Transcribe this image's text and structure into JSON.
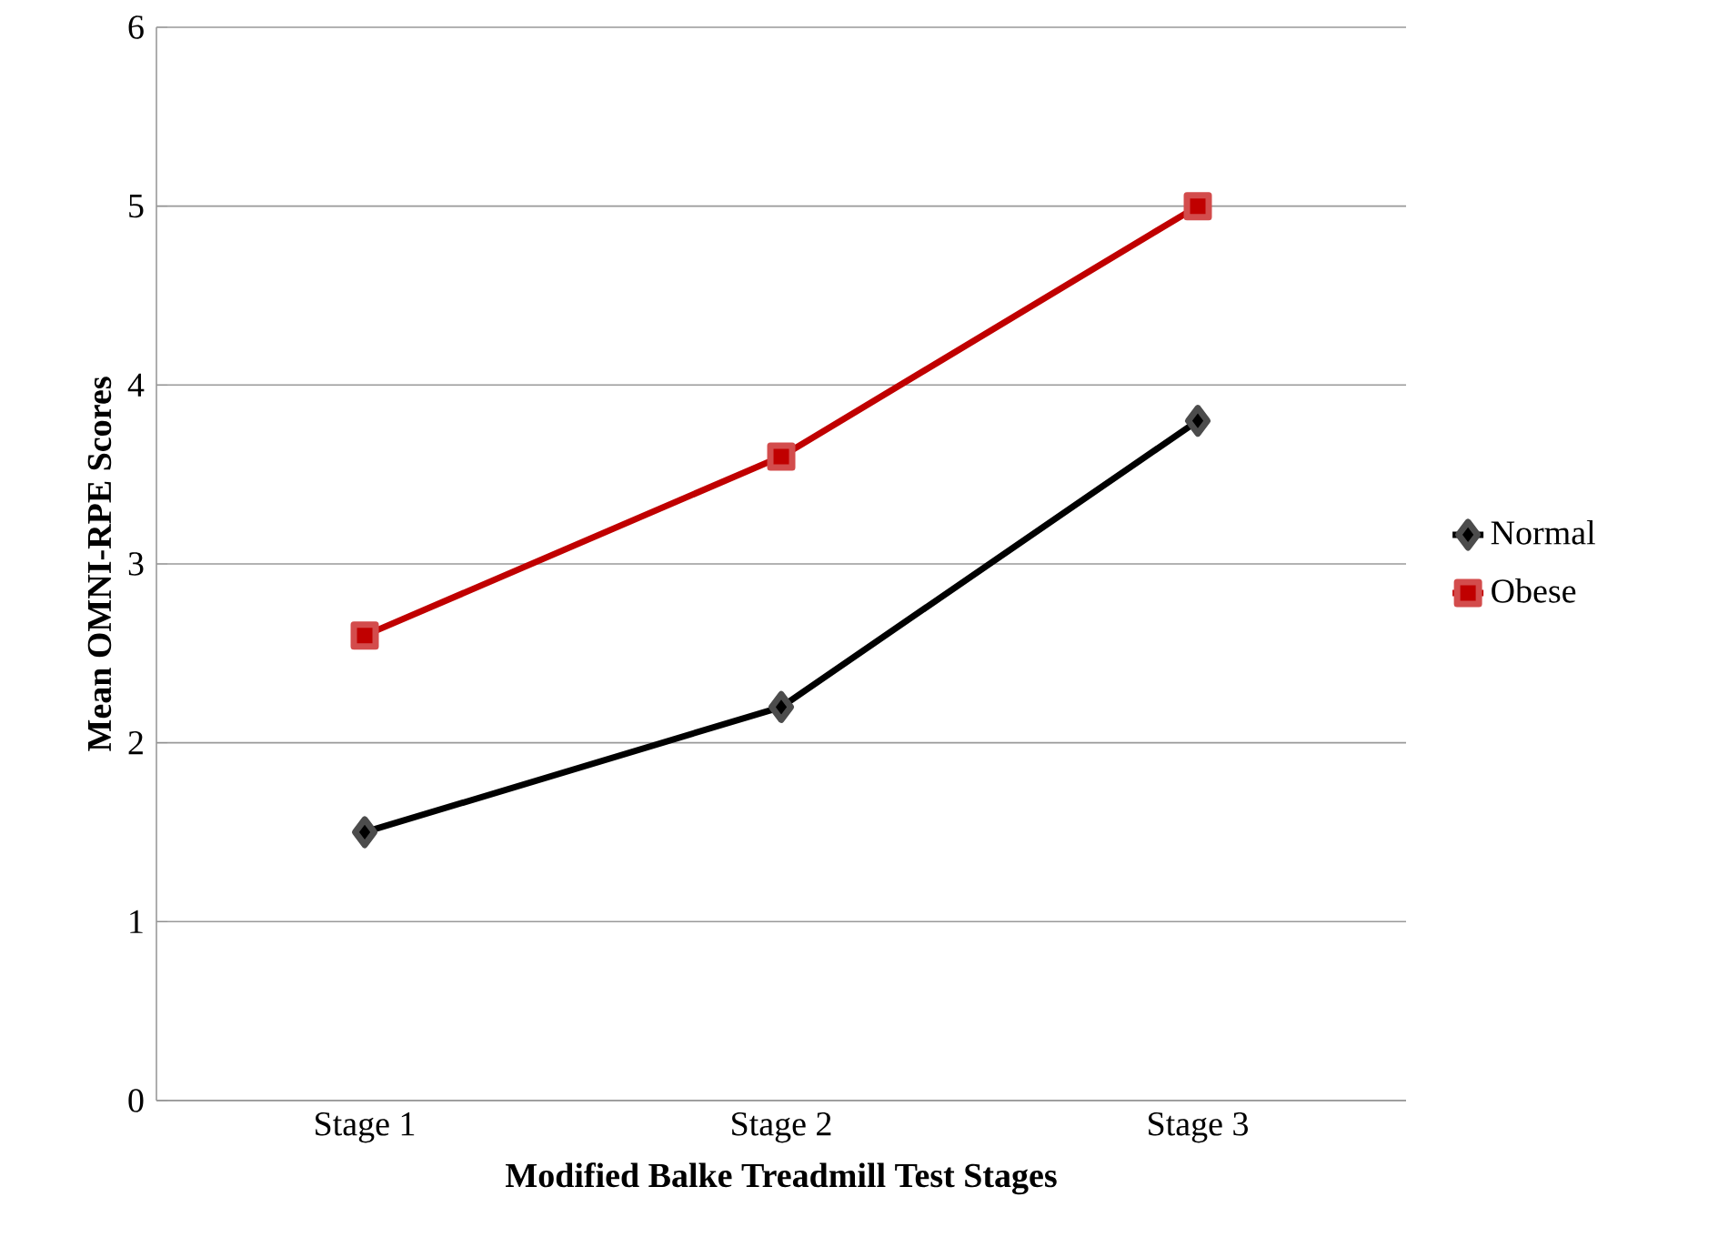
{
  "chart_data": {
    "type": "line",
    "xlabel": "Modified Balke Treadmill Test Stages",
    "ylabel": "Mean OMNI-RPE Scores",
    "categories": [
      "Stage 1",
      "Stage 2",
      "Stage 3"
    ],
    "series": [
      {
        "name": "Normal",
        "color": "#000000",
        "marker": "diamond",
        "values": [
          1.5,
          2.2,
          3.8
        ]
      },
      {
        "name": "Obese",
        "color": "#c00000",
        "marker": "square",
        "values": [
          2.6,
          3.6,
          5.0
        ]
      }
    ],
    "ylim": [
      0,
      6
    ],
    "yticks": [
      0,
      1,
      2,
      3,
      4,
      5,
      6
    ],
    "grid": "y",
    "legend": "right"
  }
}
